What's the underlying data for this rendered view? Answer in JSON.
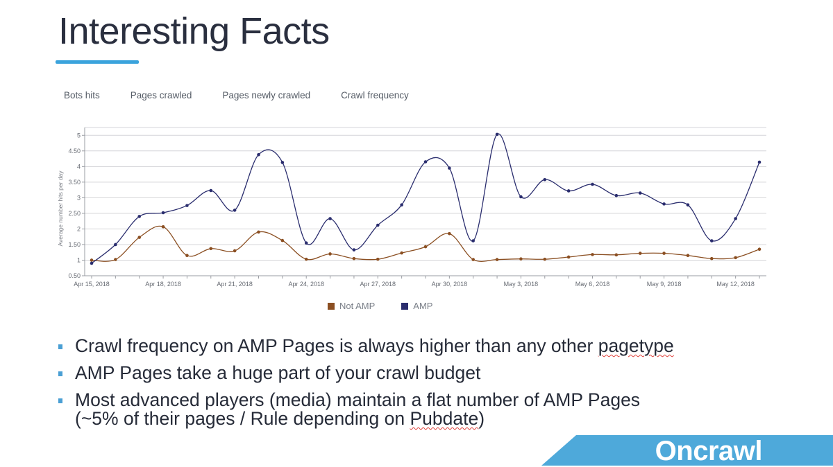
{
  "slide": {
    "title": "Interesting Facts",
    "brand": "Oncrawl"
  },
  "colors": {
    "accent": "#3aa3dc",
    "amp": "#2a2d6e",
    "not_amp": "#8b4f22",
    "grid": "#d4d4d8",
    "brand_band": "#4ea9da"
  },
  "tabs": [
    {
      "label": "Bots hits",
      "active": false
    },
    {
      "label": "Pages crawled",
      "active": false
    },
    {
      "label": "Pages newly crawled",
      "active": false
    },
    {
      "label": "Crawl frequency",
      "active": true
    }
  ],
  "chart_data": {
    "type": "line",
    "ylabel": "Average number hits per day",
    "ylim": [
      0.5,
      5.25
    ],
    "yticks": [
      "0.50",
      "1",
      "1.50",
      "2",
      "2.50",
      "3",
      "3.50",
      "4",
      "4.50",
      "5"
    ],
    "x": [
      "Apr 15, 2018",
      "Apr 16, 2018",
      "Apr 17, 2018",
      "Apr 18, 2018",
      "Apr 19, 2018",
      "Apr 20, 2018",
      "Apr 21, 2018",
      "Apr 22, 2018",
      "Apr 23, 2018",
      "Apr 24, 2018",
      "Apr 25, 2018",
      "Apr 26, 2018",
      "Apr 27, 2018",
      "Apr 28, 2018",
      "Apr 29, 2018",
      "Apr 30, 2018",
      "May 1, 2018",
      "May 2, 2018",
      "May 3, 2018",
      "May 4, 2018",
      "May 5, 2018",
      "May 6, 2018",
      "May 7, 2018",
      "May 8, 2018",
      "May 9, 2018",
      "May 10, 2018",
      "May 11, 2018",
      "May 12, 2018",
      "May 13, 2018"
    ],
    "xtick_labels": [
      {
        "index": 0,
        "label": "Apr 15, 2018"
      },
      {
        "index": 3,
        "label": "Apr 18, 2018"
      },
      {
        "index": 6,
        "label": "Apr 21, 2018"
      },
      {
        "index": 9,
        "label": "Apr 24, 2018"
      },
      {
        "index": 12,
        "label": "Apr 27, 2018"
      },
      {
        "index": 15,
        "label": "Apr 30, 2018"
      },
      {
        "index": 18,
        "label": "May 3, 2018"
      },
      {
        "index": 21,
        "label": "May 6, 2018"
      },
      {
        "index": 24,
        "label": "May 9, 2018"
      },
      {
        "index": 27,
        "label": "May 12, 2018"
      }
    ],
    "legend_position": "bottom",
    "grid": true,
    "series": [
      {
        "name": "Not AMP",
        "color": "#8b4f22",
        "values": [
          1.0,
          1.02,
          1.73,
          2.07,
          1.15,
          1.37,
          1.3,
          1.9,
          1.63,
          1.03,
          1.2,
          1.05,
          1.03,
          1.23,
          1.43,
          1.85,
          1.02,
          1.02,
          1.04,
          1.03,
          1.1,
          1.18,
          1.17,
          1.22,
          1.22,
          1.15,
          1.05,
          1.08,
          1.35
        ]
      },
      {
        "name": "AMP",
        "color": "#2a2d6e",
        "values": [
          0.9,
          1.5,
          2.4,
          2.52,
          2.75,
          3.23,
          2.6,
          4.38,
          4.13,
          1.55,
          2.33,
          1.33,
          2.12,
          2.77,
          4.15,
          3.95,
          1.62,
          5.03,
          3.03,
          3.58,
          3.22,
          3.43,
          3.07,
          3.15,
          2.8,
          2.77,
          1.62,
          2.33,
          4.14
        ]
      }
    ]
  },
  "bullets": [
    {
      "before": "Crawl frequency on AMP Pages is always higher than any other ",
      "flagged": "pagetype",
      "after": ""
    },
    {
      "before": "AMP Pages take a huge part of your crawl budget",
      "flagged": "",
      "after": ""
    },
    {
      "before": "Most advanced players (media) maintain a flat number of AMP Pages",
      "flagged": "",
      "after": ""
    },
    {
      "before": "(~5% of their pages / Rule depending on ",
      "flagged": "Pubdate",
      "after": ")"
    }
  ]
}
